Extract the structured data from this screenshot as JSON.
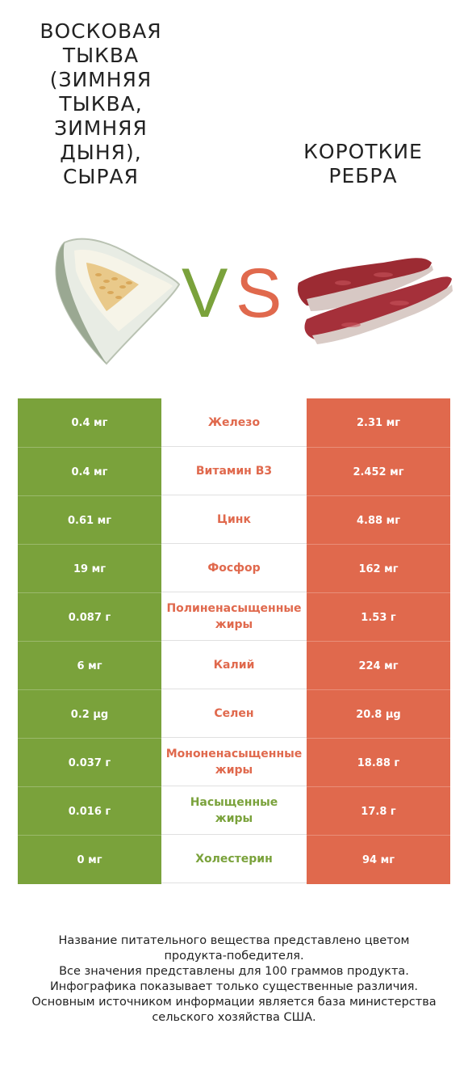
{
  "header": {
    "left_title": "Восковая\nтыква\n(зимняя\nтыква,\nзимняя\nдыня),\nсырая",
    "right_title": "Короткие\nребра",
    "vs_v": "V",
    "vs_s": "S"
  },
  "colors": {
    "left": "#7aa23b",
    "right": "#e0694d",
    "left_alt": "#739a35",
    "right_alt": "#d8654a"
  },
  "rows": [
    {
      "left": "0.4 мг",
      "label": [
        "Железо"
      ],
      "right": "2.31 мг",
      "winner": "right"
    },
    {
      "left": "0.4 мг",
      "label": [
        "Витамин B3"
      ],
      "right": "2.452 мг",
      "winner": "right"
    },
    {
      "left": "0.61 мг",
      "label": [
        "Цинк"
      ],
      "right": "4.88 мг",
      "winner": "right"
    },
    {
      "left": "19 мг",
      "label": [
        "Фосфор"
      ],
      "right": "162 мг",
      "winner": "right"
    },
    {
      "left": "0.087 г",
      "label": [
        "Полиненасыщенные",
        "жиры"
      ],
      "right": "1.53 г",
      "winner": "right"
    },
    {
      "left": "6 мг",
      "label": [
        "Калий"
      ],
      "right": "224 мг",
      "winner": "right"
    },
    {
      "left": "0.2 µg",
      "label": [
        "Селен"
      ],
      "right": "20.8 µg",
      "winner": "right"
    },
    {
      "left": "0.037 г",
      "label": [
        "Мононенасыщенные",
        "жиры"
      ],
      "right": "18.88 г",
      "winner": "right"
    },
    {
      "left": "0.016 г",
      "label": [
        "Насыщенные",
        "жиры"
      ],
      "right": "17.8 г",
      "winner": "left"
    },
    {
      "left": "0 мг",
      "label": [
        "Холестерин"
      ],
      "right": "94 мг",
      "winner": "left"
    }
  ],
  "footer": "Название питательного вещества представлено цветом\nпродукта-победителя.\nВсе значения представлены для 100 граммов продукта.\nИнфографика показывает только существенные различия.\nОсновным источником информации является база министерства\nсельского хозяйства США."
}
